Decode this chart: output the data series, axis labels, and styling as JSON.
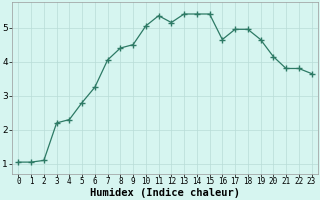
{
  "xlabel": "Humidex (Indice chaleur)",
  "x": [
    0,
    1,
    2,
    3,
    4,
    5,
    6,
    7,
    8,
    9,
    10,
    11,
    12,
    13,
    14,
    15,
    16,
    17,
    18,
    19,
    20,
    21,
    22,
    23
  ],
  "y": [
    1.05,
    1.05,
    1.1,
    2.2,
    2.3,
    2.8,
    3.25,
    4.05,
    4.4,
    4.5,
    5.05,
    5.35,
    5.15,
    5.4,
    5.4,
    5.4,
    4.65,
    4.95,
    4.95,
    4.65,
    4.15,
    3.8,
    3.8,
    3.65
  ],
  "line_color": "#2d7a65",
  "marker": "+",
  "marker_size": 4.0,
  "bg_color": "#d6f5f0",
  "grid_color": "#b8dcd7",
  "ylim": [
    0.7,
    5.75
  ],
  "yticks": [
    1,
    2,
    3,
    4,
    5
  ],
  "xtick_fontsize": 5.5,
  "ytick_fontsize": 6.5,
  "xlabel_fontsize": 7.5
}
